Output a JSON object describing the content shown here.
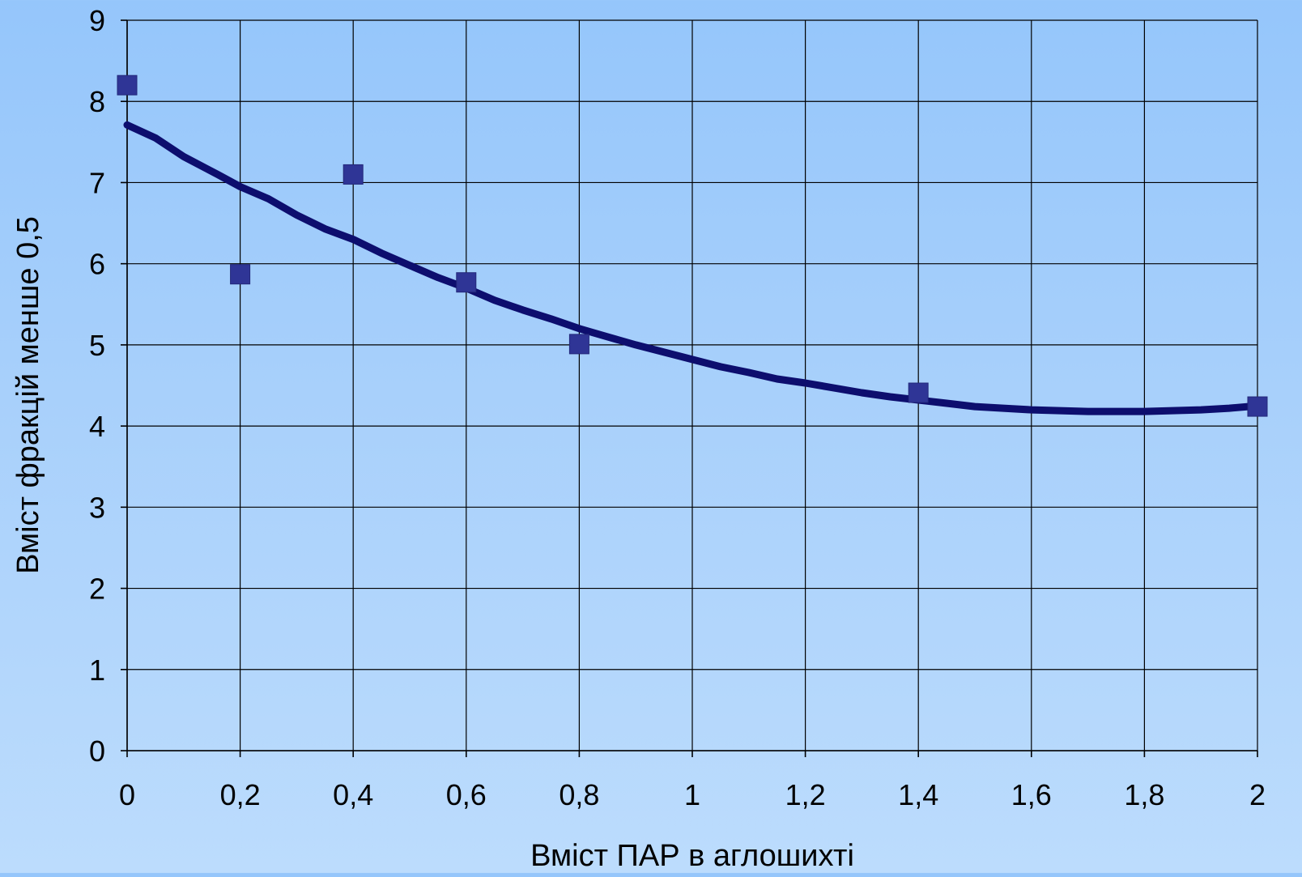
{
  "chart_data": {
    "type": "scatter",
    "title": "",
    "xlabel": "Вміст ПАР в аглошихті",
    "ylabel": "Вміст фракцій менше 0,5",
    "xlim": [
      0,
      2
    ],
    "ylim": [
      0,
      9
    ],
    "x_ticks": [
      0,
      0.2,
      0.4,
      0.6,
      0.8,
      1,
      1.2,
      1.4,
      1.6,
      1.8,
      2
    ],
    "x_tick_labels": [
      "0",
      "0,2",
      "0,4",
      "0,6",
      "0,8",
      "1",
      "1,2",
      "1,4",
      "1,6",
      "1,8",
      "2"
    ],
    "y_ticks": [
      0,
      1,
      2,
      3,
      4,
      5,
      6,
      7,
      8,
      9
    ],
    "y_tick_labels": [
      "0",
      "1",
      "2",
      "3",
      "4",
      "5",
      "6",
      "7",
      "8",
      "9"
    ],
    "grid": true,
    "legend": "none",
    "series": [
      {
        "kind": "points",
        "marker": "square",
        "color": "#2f3596",
        "x": [
          0,
          0.2,
          0.4,
          0.6,
          0.8,
          1.4,
          2.0
        ],
        "y": [
          8.2,
          5.87,
          7.1,
          5.77,
          5.01,
          4.41,
          4.24
        ]
      },
      {
        "kind": "trendline",
        "color": "#0d0e6e",
        "x": [
          0,
          0.05,
          0.1,
          0.16,
          0.2,
          0.25,
          0.3,
          0.35,
          0.4,
          0.45,
          0.5,
          0.55,
          0.6,
          0.65,
          0.7,
          0.75,
          0.8,
          0.85,
          0.9,
          0.95,
          1.0,
          1.05,
          1.1,
          1.15,
          1.2,
          1.25,
          1.3,
          1.35,
          1.4,
          1.45,
          1.5,
          1.55,
          1.6,
          1.65,
          1.7,
          1.75,
          1.8,
          1.85,
          1.9,
          1.95,
          2.0
        ],
        "y": [
          7.71,
          7.55,
          7.32,
          7.1,
          6.95,
          6.8,
          6.6,
          6.43,
          6.3,
          6.13,
          5.98,
          5.83,
          5.7,
          5.55,
          5.43,
          5.32,
          5.2,
          5.1,
          5.0,
          4.91,
          4.82,
          4.73,
          4.66,
          4.58,
          4.53,
          4.47,
          4.41,
          4.36,
          4.32,
          4.28,
          4.24,
          4.22,
          4.2,
          4.19,
          4.18,
          4.18,
          4.18,
          4.19,
          4.2,
          4.22,
          4.25
        ]
      }
    ]
  }
}
